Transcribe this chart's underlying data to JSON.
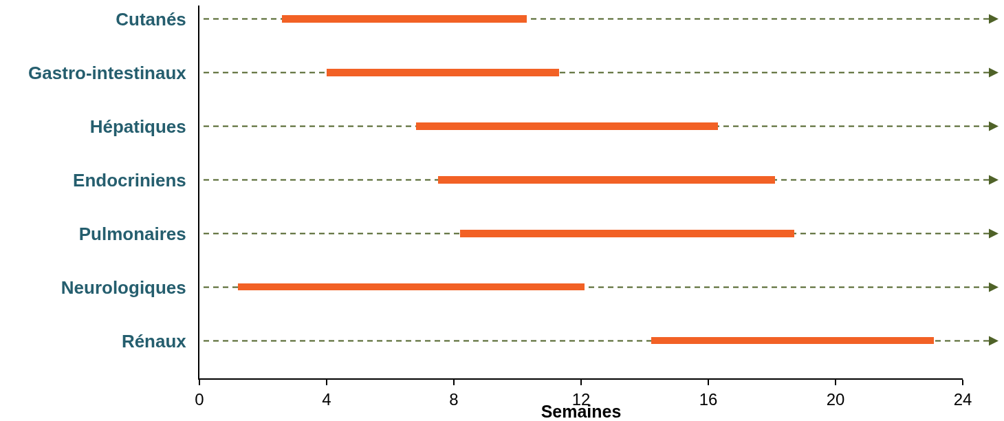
{
  "chart_data": {
    "type": "bar",
    "orientation": "horizontal",
    "xlabel": "Semaines",
    "categories": [
      "Cutanés",
      "Gastro-intestinaux",
      "Hépatiques",
      "Endocriniens",
      "Pulmonaires",
      "Neurologiques",
      "Rénaux"
    ],
    "base": [
      2.6,
      4.0,
      6.8,
      7.5,
      8.2,
      1.2,
      14.2
    ],
    "values": [
      7.7,
      7.3,
      9.5,
      10.6,
      10.5,
      10.9,
      8.9
    ],
    "color": "#f26125",
    "xlim": [
      0,
      24
    ],
    "xticks": [
      0,
      4,
      8,
      12,
      16,
      20,
      24
    ]
  }
}
